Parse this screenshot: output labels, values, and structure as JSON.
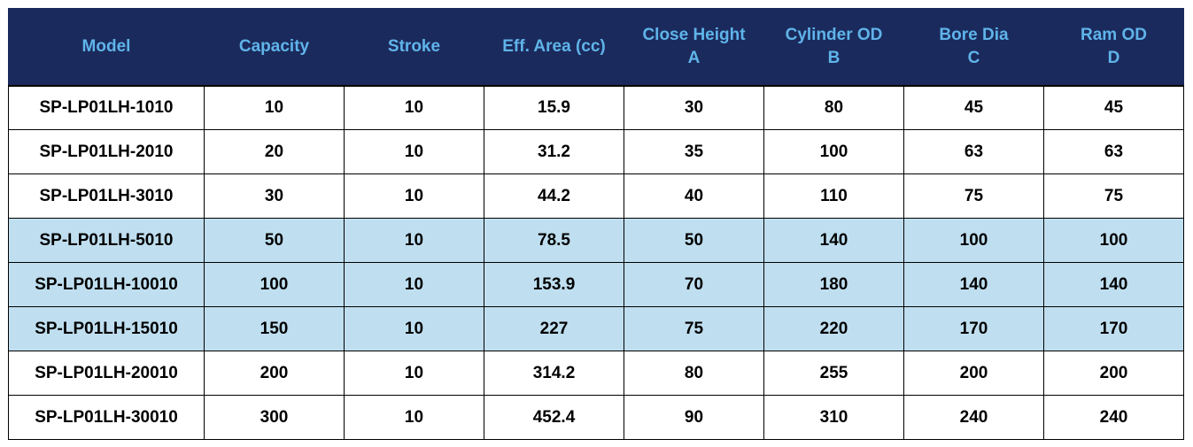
{
  "headers": [
    {
      "line1": "Model",
      "line2": ""
    },
    {
      "line1": "Capacity",
      "line2": ""
    },
    {
      "line1": "Stroke",
      "line2": ""
    },
    {
      "line1": "Eff. Area (cc)",
      "line2": ""
    },
    {
      "line1": "Close Height",
      "line2": "A"
    },
    {
      "line1": "Cylinder OD",
      "line2": "B"
    },
    {
      "line1": "Bore Dia",
      "line2": "C"
    },
    {
      "line1": "Ram OD",
      "line2": "D"
    }
  ],
  "rows": [
    {
      "highlight": false,
      "cells": [
        "SP-LP01LH-1010",
        "10",
        "10",
        "15.9",
        "30",
        "80",
        "45",
        "45"
      ]
    },
    {
      "highlight": false,
      "cells": [
        "SP-LP01LH-2010",
        "20",
        "10",
        "31.2",
        "35",
        "100",
        "63",
        "63"
      ]
    },
    {
      "highlight": false,
      "cells": [
        "SP-LP01LH-3010",
        "30",
        "10",
        "44.2",
        "40",
        "110",
        "75",
        "75"
      ]
    },
    {
      "highlight": true,
      "cells": [
        "SP-LP01LH-5010",
        "50",
        "10",
        "78.5",
        "50",
        "140",
        "100",
        "100"
      ]
    },
    {
      "highlight": true,
      "cells": [
        "SP-LP01LH-10010",
        "100",
        "10",
        "153.9",
        "70",
        "180",
        "140",
        "140"
      ]
    },
    {
      "highlight": true,
      "cells": [
        "SP-LP01LH-15010",
        "150",
        "10",
        "227",
        "75",
        "220",
        "170",
        "170"
      ]
    },
    {
      "highlight": false,
      "cells": [
        "SP-LP01LH-20010",
        "200",
        "10",
        "314.2",
        "80",
        "255",
        "200",
        "200"
      ]
    },
    {
      "highlight": false,
      "cells": [
        "SP-LP01LH-30010",
        "300",
        "10",
        "452.4",
        "90",
        "310",
        "240",
        "240"
      ]
    }
  ],
  "colors": {
    "header_bg": "#1b2a5c",
    "header_text": "#5fb4ea",
    "highlight_row": "#bfdff0"
  }
}
